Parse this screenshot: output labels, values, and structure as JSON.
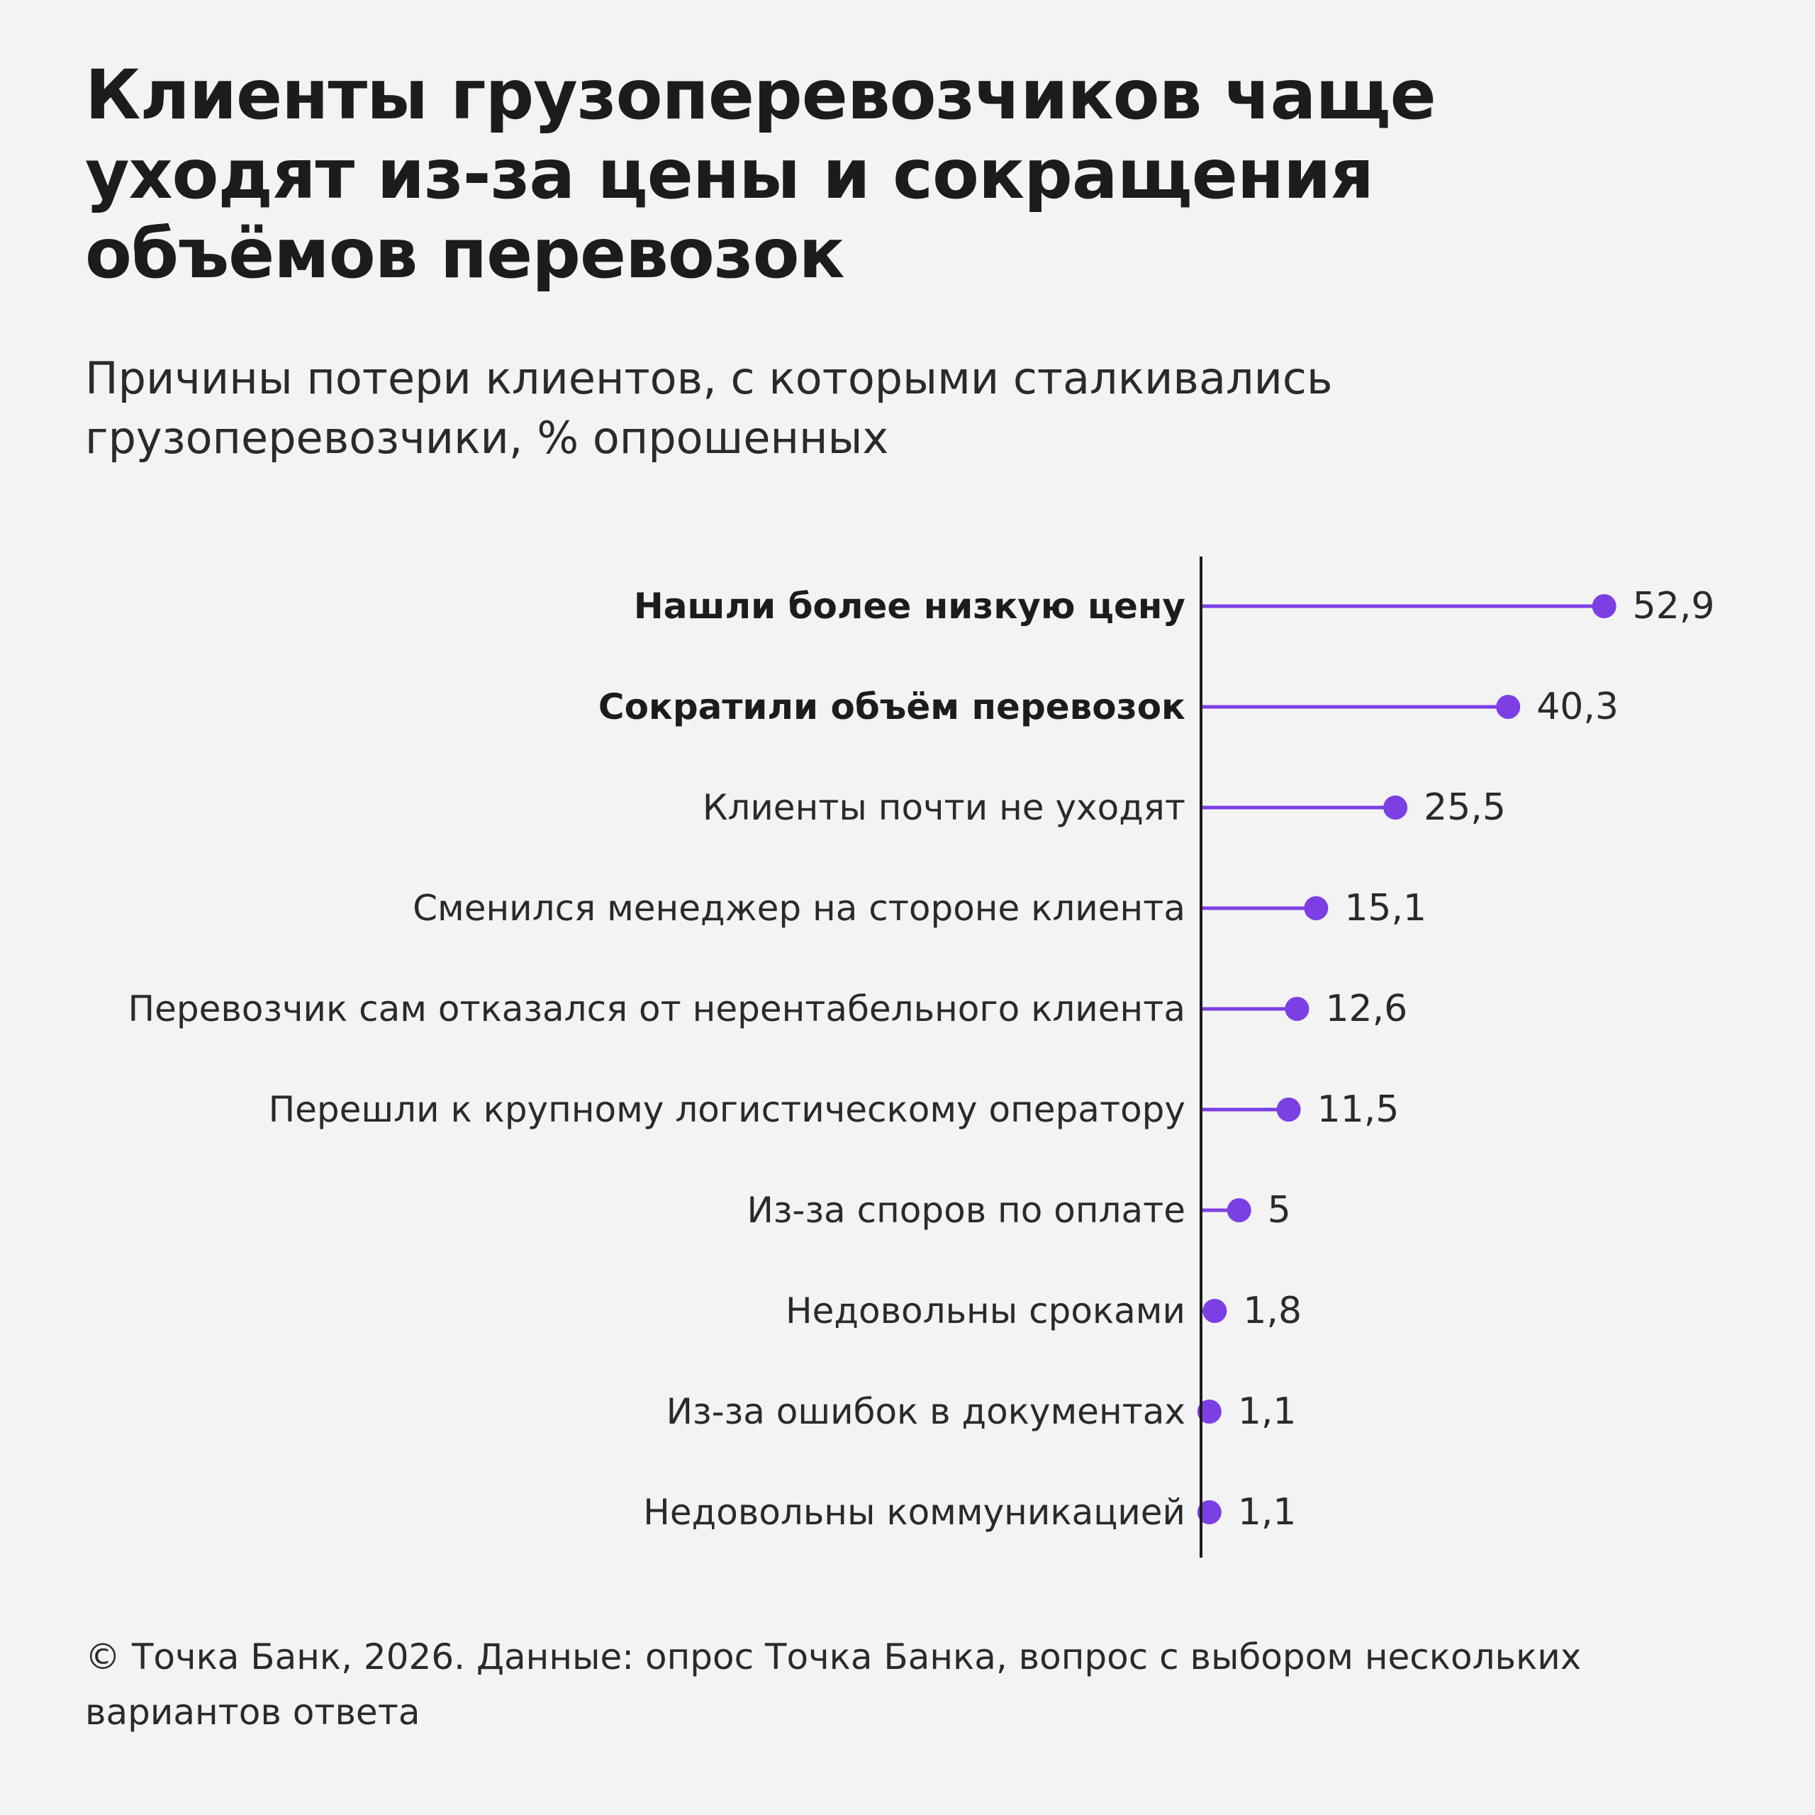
{
  "title": "Клиенты грузоперевозчиков чаще\nуходят из-за цены и сокращения\nобъёмов перевозок",
  "subtitle": "Причины потери клиентов, с которыми сталкивались\nгрузоперевозчики, % опрошенных",
  "footer": "© Точка Банк, 2026. Данные: опрос Точка Банка, вопрос с выбором нескольких\nвариантов ответа",
  "chart_data": {
    "type": "bar",
    "orientation": "horizontal",
    "style": "lollipop",
    "color": "#7b3fe4",
    "axis_color": "#1c1c1c",
    "categories": [
      "Нашли более низкую цену",
      "Сократили объём перевозок",
      "Клиенты почти не уходят",
      "Сменился менеджер на стороне клиента",
      "Перевозчик сам отказался от нерентабельного клиента",
      "Перешли к крупному логистическому оператору",
      "Из-за споров по оплате",
      "Недовольны сроками",
      "Из-за ошибок в документах",
      "Недовольны коммуникацией"
    ],
    "values": [
      52.9,
      40.3,
      25.5,
      15.1,
      12.6,
      11.5,
      5,
      1.8,
      1.1,
      1.1
    ],
    "value_labels": [
      "52,9",
      "40,3",
      "25,5",
      "15,1",
      "12,6",
      "11,5",
      "5",
      "1,8",
      "1,1",
      "1,1"
    ],
    "highlighted": [
      true,
      true,
      false,
      false,
      false,
      false,
      false,
      false,
      false,
      false
    ],
    "xlim": [
      0,
      60
    ],
    "grid": false,
    "legend": "none"
  }
}
